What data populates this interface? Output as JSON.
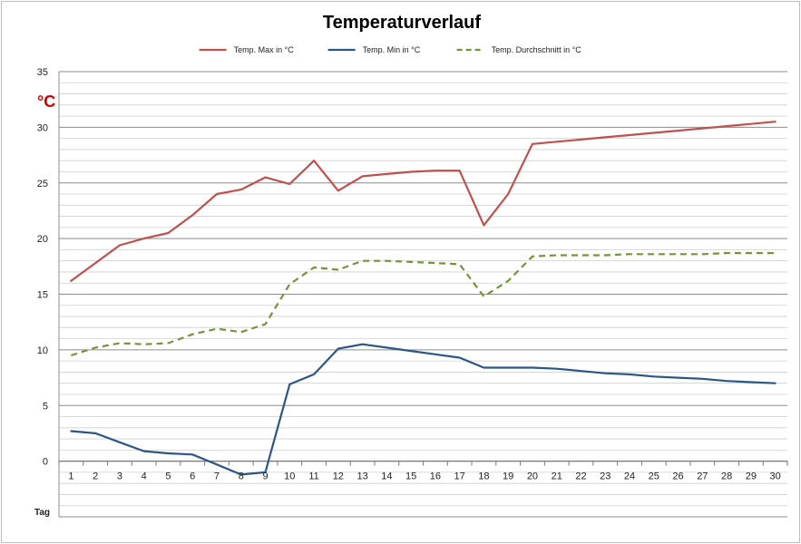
{
  "chart_data": {
    "type": "line",
    "title": "Temperaturverlauf",
    "unit_label": "°C",
    "xlabel": "Tag",
    "categories": [
      "1",
      "2",
      "3",
      "4",
      "5",
      "6",
      "7",
      "8",
      "9",
      "10",
      "11",
      "12",
      "13",
      "14",
      "15",
      "16",
      "17",
      "18",
      "19",
      "20",
      "21",
      "22",
      "23",
      "24",
      "25",
      "26",
      "27",
      "28",
      "29",
      "30"
    ],
    "ylim": [
      -5,
      35
    ],
    "yticks": [
      "35",
      "30",
      "25",
      "20",
      "15",
      "10",
      "5",
      "0"
    ],
    "grid": true,
    "legend_position": "top",
    "series": [
      {
        "name": "Temp. Max in °C",
        "color": "#c0504d",
        "style": "solid",
        "values": [
          16.2,
          17.8,
          19.4,
          20.0,
          20.5,
          22.1,
          24.0,
          24.4,
          25.5,
          24.9,
          27.0,
          24.3,
          25.6,
          25.8,
          26.0,
          26.1,
          26.1,
          21.2,
          24.0,
          28.5,
          28.7,
          28.9,
          29.1,
          29.3,
          29.5,
          29.7,
          29.9,
          30.1,
          30.3,
          30.5
        ]
      },
      {
        "name": "Temp. Min in °C",
        "color": "#2c5687",
        "style": "solid",
        "values": [
          2.7,
          2.5,
          1.7,
          0.9,
          0.7,
          0.6,
          -0.3,
          -1.2,
          -1.0,
          6.9,
          7.8,
          10.1,
          10.5,
          10.2,
          9.9,
          9.6,
          9.3,
          8.4,
          8.4,
          8.4,
          8.3,
          8.1,
          7.9,
          7.8,
          7.6,
          7.5,
          7.4,
          7.2,
          7.1,
          7.0
        ]
      },
      {
        "name": "Temp. Durchschnitt in °C",
        "color": "#76923c",
        "style": "dashed",
        "values": [
          9.5,
          10.2,
          10.6,
          10.5,
          10.6,
          11.4,
          11.9,
          11.6,
          12.3,
          15.9,
          17.4,
          17.2,
          18.0,
          18.0,
          17.9,
          17.8,
          17.7,
          14.8,
          16.2,
          18.4,
          18.5,
          18.5,
          18.5,
          18.6,
          18.6,
          18.6,
          18.6,
          18.7,
          18.7,
          18.7
        ]
      }
    ]
  }
}
